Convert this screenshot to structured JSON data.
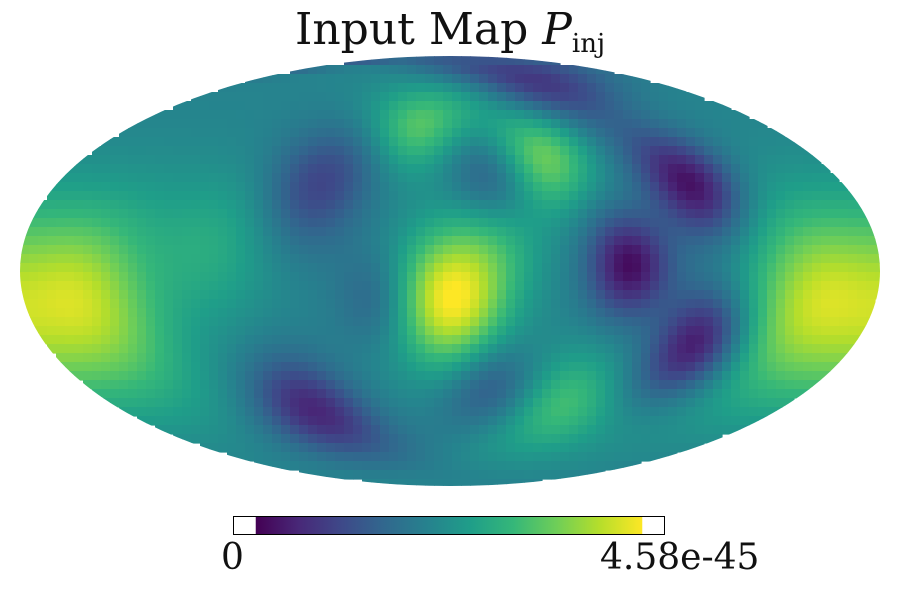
{
  "title": {
    "main": "Input Map",
    "variable": "P",
    "subscript": "inj"
  },
  "chart_data": {
    "type": "heatmap",
    "projection": "mollweide",
    "colormap": "viridis",
    "colormap_stops": [
      "#440154",
      "#482878",
      "#3e4989",
      "#31688e",
      "#26828e",
      "#1f9e89",
      "#35b779",
      "#6ece58",
      "#b5de2b",
      "#fde725"
    ],
    "colorbar": {
      "min": 0,
      "max": 4.58e-45,
      "min_label": "0",
      "max_label": "4.58e-45",
      "orientation": "horizontal"
    },
    "field": {
      "baseline": 0.45,
      "features": [
        {
          "lon": 0,
          "lat": -10,
          "amp": 0.55,
          "width": 16,
          "kind": "maximum"
        },
        {
          "lon": 155,
          "lat": -10,
          "amp": 0.45,
          "width": 22,
          "kind": "maximum"
        },
        {
          "lon": -155,
          "lat": -10,
          "amp": 0.45,
          "width": 22,
          "kind": "maximum"
        },
        {
          "lon": 45,
          "lat": 40,
          "amp": 0.35,
          "width": 13,
          "kind": "maximum"
        },
        {
          "lon": -18,
          "lat": 52,
          "amp": 0.3,
          "width": 12,
          "kind": "maximum"
        },
        {
          "lon": 60,
          "lat": -48,
          "amp": 0.25,
          "width": 14,
          "kind": "maximum"
        },
        {
          "lon": -100,
          "lat": 8,
          "amp": 0.15,
          "width": 18,
          "kind": "maximum"
        },
        {
          "lon": 20,
          "lat": 10,
          "amp": 0.15,
          "width": 14,
          "kind": "maximum"
        },
        {
          "lon": 75,
          "lat": 2,
          "amp": -0.42,
          "width": 12,
          "kind": "minimum"
        },
        {
          "lon": 110,
          "lat": 30,
          "amp": -0.42,
          "width": 13,
          "kind": "minimum"
        },
        {
          "lon": 110,
          "lat": -25,
          "amp": -0.42,
          "width": 13,
          "kind": "minimum"
        },
        {
          "lon": -60,
          "lat": 30,
          "amp": -0.25,
          "width": 15,
          "kind": "minimum"
        },
        {
          "lon": 20,
          "lat": 32,
          "amp": -0.2,
          "width": 12,
          "kind": "minimum"
        },
        {
          "lon": -75,
          "lat": -50,
          "amp": -0.35,
          "width": 14,
          "kind": "minimum"
        },
        {
          "lon": 20,
          "lat": -40,
          "amp": -0.2,
          "width": 12,
          "kind": "minimum"
        },
        {
          "lon": 75,
          "lat": 72,
          "amp": -0.3,
          "width": 14,
          "kind": "minimum"
        },
        {
          "lon": -30,
          "lat": -10,
          "amp": -0.15,
          "width": 12,
          "kind": "minimum"
        }
      ]
    }
  }
}
